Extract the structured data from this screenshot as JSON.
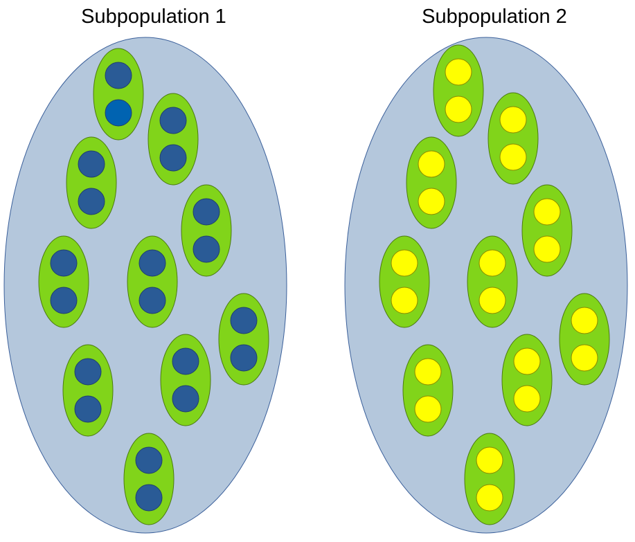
{
  "colors": {
    "population_fill": "#b4c7dc",
    "population_stroke": "#3a5f9a",
    "pair_fill": "#81d41a",
    "pair_stroke": "#4b7a10",
    "dot_blue": "#2a5b96",
    "dot_blue_bright": "#0063b1",
    "dot_blue_stroke": "#1e3f6e",
    "dot_yellow": "#ffff00",
    "dot_yellow_stroke": "#8a8a00"
  },
  "subpopulations": [
    {
      "title": "Subpopulation 1",
      "dot_color": "blue",
      "pair_count": 10,
      "highlighted_dot": {
        "pair": 0,
        "dot": 1
      }
    },
    {
      "title": "Subpopulation 2",
      "dot_color": "yellow",
      "pair_count": 10,
      "highlighted_dot": null
    }
  ]
}
